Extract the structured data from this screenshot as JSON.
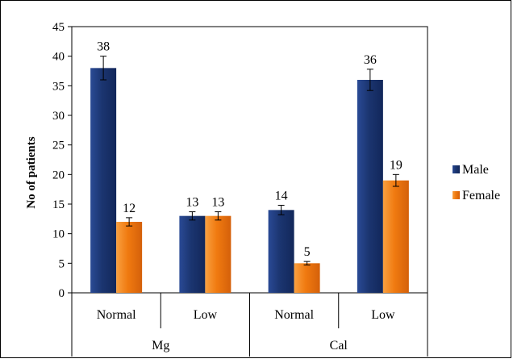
{
  "chart_data": {
    "type": "bar",
    "title": "",
    "xlabel": "",
    "ylabel": "No of patients",
    "ylim": [
      0,
      45
    ],
    "yticks": [
      0,
      5,
      10,
      15,
      20,
      25,
      30,
      35,
      40,
      45
    ],
    "grid": false,
    "legend_position": "right",
    "error_bars": true,
    "categories": [
      "Normal",
      "Low",
      "Normal",
      "Low"
    ],
    "groups": [
      {
        "label": "Mg",
        "categories": [
          "Normal",
          "Low"
        ]
      },
      {
        "label": "Cal",
        "categories": [
          "Normal",
          "Low"
        ]
      }
    ],
    "series": [
      {
        "name": "Male",
        "color": "#1F3A7A",
        "values": [
          38,
          13,
          14,
          36
        ],
        "errors": [
          2,
          0.7,
          0.8,
          1.8
        ]
      },
      {
        "name": "Female",
        "color": "#F07A10",
        "values": [
          12,
          13,
          5,
          19
        ],
        "errors": [
          0.7,
          0.7,
          0.3,
          1
        ]
      }
    ]
  }
}
